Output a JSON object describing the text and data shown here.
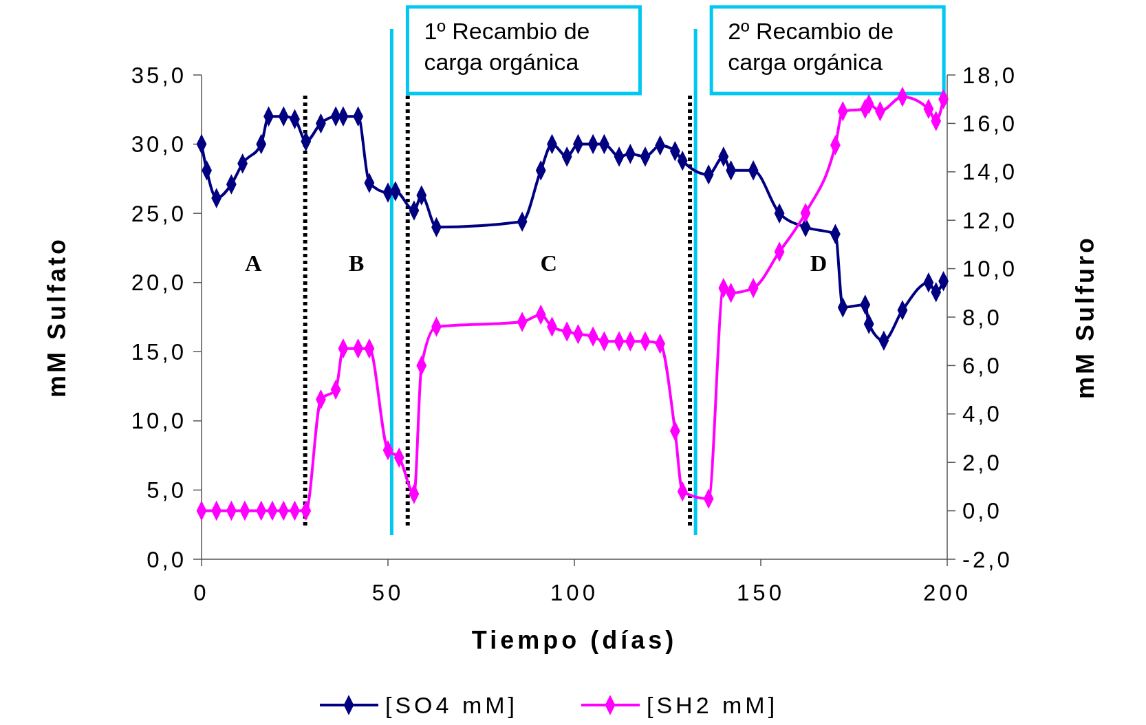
{
  "chart_data": {
    "type": "line",
    "xlabel": "Tiempo (días)",
    "ylabel": "mM Sulfato",
    "y2label": "mM Sulfuro",
    "xlim": [
      0,
      200
    ],
    "xticks": [
      0,
      50,
      100,
      150,
      200
    ],
    "ylim": [
      0,
      35
    ],
    "yticks": [
      {
        "value": 0,
        "label": "0,0"
      },
      {
        "value": 5,
        "label": "5,0"
      },
      {
        "value": 10,
        "label": "10,0"
      },
      {
        "value": 15,
        "label": "15,0"
      },
      {
        "value": 20,
        "label": "20,0"
      },
      {
        "value": 25,
        "label": "25,0"
      },
      {
        "value": 30,
        "label": "30,0"
      },
      {
        "value": 35,
        "label": "35,0"
      }
    ],
    "y2lim": [
      -2,
      18
    ],
    "y2ticks": [
      {
        "value": -2,
        "label": "-2,0"
      },
      {
        "value": 0,
        "label": "0,0"
      },
      {
        "value": 2,
        "label": "2,0"
      },
      {
        "value": 4,
        "label": "4,0"
      },
      {
        "value": 6,
        "label": "6,0"
      },
      {
        "value": 8,
        "label": "8,0"
      },
      {
        "value": 10,
        "label": "10,0"
      },
      {
        "value": 12,
        "label": "12,0"
      },
      {
        "value": 14,
        "label": "14,0"
      },
      {
        "value": 16,
        "label": "16,0"
      },
      {
        "value": 18,
        "label": "18,0"
      }
    ],
    "marker": "diamond",
    "line_style": "solid",
    "grid": false,
    "legend": "bottom",
    "series": [
      {
        "name": "[SO4 mM]",
        "color": "#000080",
        "x": [
          0,
          1.4,
          4,
          8,
          11,
          16,
          18,
          22,
          25,
          28,
          32,
          36,
          38,
          42,
          45,
          50,
          52,
          57,
          59,
          63,
          86,
          91,
          94,
          98,
          101,
          105,
          108,
          112,
          115,
          119,
          123,
          127,
          129,
          136,
          140,
          142,
          148,
          155,
          162,
          170,
          172,
          178,
          179,
          183,
          188,
          195,
          197,
          199
        ],
        "values": [
          30.0,
          28.1,
          26.1,
          27.1,
          28.6,
          30.0,
          32.0,
          32.0,
          31.8,
          30.2,
          31.5,
          32.0,
          32.0,
          32.0,
          27.2,
          26.5,
          26.6,
          25.2,
          26.3,
          24.0,
          24.4,
          28.1,
          30.0,
          29.1,
          30.0,
          30.0,
          30.0,
          29.1,
          29.3,
          29.1,
          29.9,
          29.5,
          28.8,
          27.8,
          29.1,
          28.1,
          28.1,
          25.0,
          24.0,
          23.5,
          18.2,
          18.4,
          17.0,
          15.8,
          18.0,
          20.0,
          19.3,
          20.1
        ]
      },
      {
        "name": "[SH2 mM]",
        "color": "#ff00ff",
        "axis": "y2",
        "x": [
          0,
          4,
          8,
          11.6,
          16,
          19,
          22,
          25,
          28,
          32,
          36,
          38,
          42,
          45,
          50,
          53,
          57,
          59,
          63,
          86,
          91,
          94,
          98,
          101,
          105,
          108,
          112,
          115,
          119,
          123,
          127,
          129,
          136,
          140,
          142,
          148,
          155,
          162,
          170,
          172,
          178,
          179,
          182,
          188,
          195,
          197,
          199
        ],
        "values": [
          0,
          0,
          0,
          0,
          0,
          0,
          0,
          0,
          0,
          4.6,
          5.0,
          6.7,
          6.7,
          6.7,
          2.5,
          2.2,
          0.7,
          6.0,
          7.6,
          7.8,
          8.1,
          7.6,
          7.4,
          7.3,
          7.2,
          7.0,
          7.0,
          7.0,
          7.0,
          6.9,
          3.3,
          0.8,
          0.5,
          9.2,
          9.0,
          9.2,
          10.7,
          12.3,
          15.1,
          16.5,
          16.6,
          16.8,
          16.5,
          17.1,
          16.6,
          16.1,
          17.0
        ]
      }
    ],
    "ref_lines": [
      {
        "axis": "x",
        "value": 27.8,
        "color": "#000000",
        "line_style": "dotted"
      },
      {
        "axis": "x",
        "value": 55.3,
        "color": "#000000",
        "line_style": "dotted"
      },
      {
        "axis": "x",
        "value": 131,
        "color": "#000000",
        "line_style": "dotted"
      },
      {
        "axis": "x",
        "value": 51,
        "color": "#00c8f0",
        "line_style": "solid",
        "label": "1º Recambio de carga orgánica"
      },
      {
        "axis": "x",
        "value": 132.5,
        "color": "#00c8f0",
        "line_style": "solid",
        "label": "2º Recambio de carga orgánica"
      }
    ],
    "annotations": [
      "A",
      "B",
      "C",
      "D"
    ]
  }
}
